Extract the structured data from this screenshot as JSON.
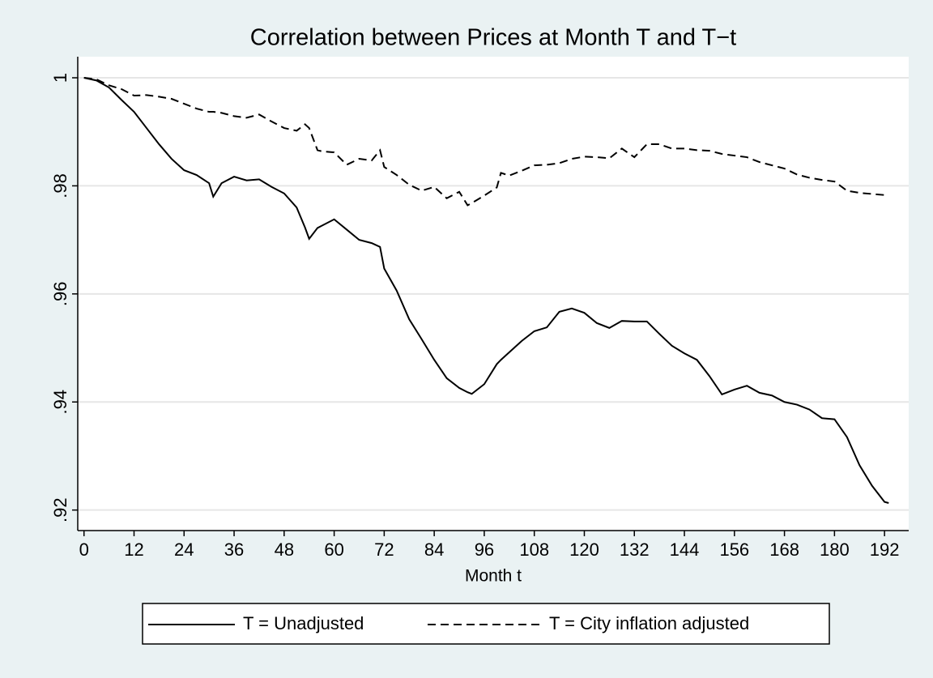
{
  "chart_data": {
    "type": "line",
    "title": "Correlation between Prices at Month T and T−t",
    "x_label": "Month t",
    "x": [
      0,
      3,
      6,
      9,
      12,
      15,
      18,
      21,
      24,
      27,
      30,
      31,
      33,
      36,
      39,
      42,
      45,
      48,
      51,
      53,
      54,
      56,
      57,
      60,
      63,
      66,
      69,
      71,
      72,
      75,
      78,
      81,
      84,
      87,
      90,
      92,
      93,
      96,
      99,
      100,
      102,
      105,
      108,
      111,
      114,
      117,
      120,
      123,
      126,
      129,
      132,
      135,
      138,
      141,
      144,
      147,
      150,
      153,
      156,
      159,
      162,
      165,
      168,
      171,
      174,
      177,
      180,
      183,
      186,
      189,
      192,
      193
    ],
    "series": [
      {
        "name": "T = Unadjusted",
        "color": "#000000",
        "dash": "solid",
        "values": [
          1.0,
          0.9995,
          0.9982,
          0.9959,
          0.9937,
          0.9907,
          0.9877,
          0.985,
          0.9829,
          0.982,
          0.9805,
          0.978,
          0.9805,
          0.9817,
          0.981,
          0.9812,
          0.9798,
          0.9786,
          0.976,
          0.9723,
          0.9702,
          0.9722,
          0.9726,
          0.9738,
          0.9719,
          0.97,
          0.9694,
          0.9687,
          0.9647,
          0.9606,
          0.9553,
          0.9516,
          0.9478,
          0.9444,
          0.9426,
          0.9418,
          0.9415,
          0.9433,
          0.947,
          0.9478,
          0.9492,
          0.9513,
          0.9531,
          0.9538,
          0.9567,
          0.9573,
          0.9565,
          0.9546,
          0.9537,
          0.955,
          0.9549,
          0.9549,
          0.9526,
          0.9504,
          0.949,
          0.9478,
          0.9448,
          0.9414,
          0.9423,
          0.943,
          0.9417,
          0.9412,
          0.94,
          0.9395,
          0.9386,
          0.937,
          0.9368,
          0.9335,
          0.9283,
          0.9245,
          0.9215,
          0.9213
        ]
      },
      {
        "name": "T = City inflation adjusted",
        "color": "#000000",
        "dash": "dashed",
        "values": [
          1.0,
          0.9997,
          0.9986,
          0.9979,
          0.9967,
          0.9968,
          0.9965,
          0.9961,
          0.9952,
          0.9943,
          0.9937,
          0.9937,
          0.9935,
          0.9929,
          0.9926,
          0.9932,
          0.9919,
          0.9907,
          0.9902,
          0.9914,
          0.9907,
          0.9866,
          0.9864,
          0.9862,
          0.9839,
          0.985,
          0.9847,
          0.9866,
          0.9835,
          0.982,
          0.9802,
          0.9791,
          0.9798,
          0.9777,
          0.9789,
          0.9764,
          0.9768,
          0.9782,
          0.9797,
          0.9824,
          0.9819,
          0.9828,
          0.9838,
          0.9839,
          0.9842,
          0.985,
          0.9854,
          0.9853,
          0.9851,
          0.9869,
          0.9853,
          0.9877,
          0.9877,
          0.9869,
          0.9869,
          0.9866,
          0.9865,
          0.9859,
          0.9856,
          0.9853,
          0.9844,
          0.9838,
          0.9832,
          0.9821,
          0.9815,
          0.9811,
          0.9808,
          0.9791,
          0.9787,
          0.9785,
          0.9783,
          0.9783
        ]
      }
    ],
    "xlim": [
      -1.5,
      197.8
    ],
    "xticks": [
      0,
      12,
      24,
      36,
      48,
      60,
      72,
      84,
      96,
      108,
      120,
      132,
      144,
      156,
      168,
      180,
      192
    ],
    "ylim": [
      0.9162,
      1.0039
    ],
    "yticks": [
      {
        "value": 0.92,
        "label": ".92"
      },
      {
        "value": 0.94,
        "label": ".94"
      },
      {
        "value": 0.96,
        "label": ".96"
      },
      {
        "value": 0.98,
        "label": ".98"
      },
      1
    ],
    "grid": true,
    "legend": "bottom"
  }
}
